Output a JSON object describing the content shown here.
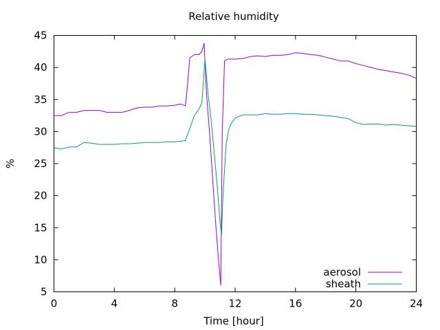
{
  "chart_data": {
    "type": "line",
    "title": "Relative humidity",
    "xlabel": "Time [hour]",
    "ylabel": "%",
    "xlim": [
      0,
      24
    ],
    "ylim": [
      5,
      45
    ],
    "xticks": [
      0,
      4,
      8,
      12,
      16,
      20,
      24
    ],
    "yticks": [
      5,
      10,
      15,
      20,
      25,
      30,
      35,
      40,
      45
    ],
    "grid": false,
    "legend_position": "bottom-right",
    "series": [
      {
        "name": "aerosol",
        "color": "#9400d3",
        "x": [
          0,
          0.5,
          1,
          1.5,
          2,
          2.5,
          3,
          3.5,
          4,
          4.5,
          5,
          5.5,
          6,
          6.5,
          7,
          7.5,
          8,
          8.4,
          8.7,
          8.8,
          9.0,
          9.3,
          9.6,
          9.8,
          9.95,
          10.1,
          10.3,
          10.5,
          10.7,
          10.9,
          11.05,
          11.15,
          11.3,
          11.5,
          12,
          12.5,
          13,
          13.5,
          14,
          14.5,
          15,
          15.5,
          16,
          16.5,
          17,
          17.5,
          18,
          18.5,
          19,
          19.5,
          20,
          20.5,
          21,
          21.5,
          22,
          22.5,
          23,
          23.5,
          24
        ],
        "y": [
          32.5,
          32.5,
          33,
          33,
          33.3,
          33.3,
          33.3,
          33,
          33,
          33,
          33.3,
          33.7,
          33.8,
          33.8,
          34,
          34,
          34.1,
          34.3,
          34,
          36,
          41.5,
          42,
          42,
          42.5,
          43.8,
          36,
          30,
          23,
          16,
          10,
          6,
          30,
          41,
          41.3,
          41.3,
          41.4,
          41.7,
          41.8,
          41.7,
          41.9,
          41.9,
          42,
          42.3,
          42.2,
          42,
          41.9,
          41.6,
          41.3,
          41,
          41,
          40.6,
          40.3,
          40,
          39.7,
          39.5,
          39.3,
          39.1,
          38.8,
          38.3
        ]
      },
      {
        "name": "sheath",
        "color": "#009e73",
        "x": [
          0,
          0.5,
          1,
          1.5,
          2,
          2.5,
          3,
          3.5,
          4,
          4.5,
          5,
          5.5,
          6,
          6.5,
          7,
          7.5,
          8,
          8.4,
          8.7,
          9.0,
          9.3,
          9.6,
          9.8,
          10.0,
          10.2,
          10.4,
          10.6,
          10.8,
          11.0,
          11.1,
          11.2,
          11.4,
          11.6,
          11.8,
          12,
          12.5,
          13,
          13.5,
          14,
          14.5,
          15,
          15.5,
          16,
          16.5,
          17,
          17.5,
          18,
          18.5,
          19,
          19.5,
          20,
          20.5,
          21,
          21.5,
          22,
          22.5,
          23,
          23.5,
          24
        ],
        "y": [
          27.5,
          27.3,
          27.6,
          27.6,
          28.3,
          28.2,
          28.0,
          28.0,
          28.0,
          28.1,
          28.1,
          28.2,
          28.3,
          28.3,
          28.3,
          28.4,
          28.4,
          28.5,
          28.6,
          30.5,
          32.5,
          33.5,
          34.5,
          41.3,
          36,
          32,
          27,
          22,
          16,
          13.8,
          20,
          28,
          30.5,
          31.5,
          32.1,
          32.6,
          32.6,
          32.6,
          32.8,
          32.7,
          32.7,
          32.8,
          32.8,
          32.7,
          32.7,
          32.6,
          32.5,
          32.4,
          32.2,
          32.0,
          31.4,
          31.1,
          31.2,
          31.2,
          31.0,
          31.1,
          31.0,
          30.9,
          30.8
        ]
      }
    ]
  }
}
